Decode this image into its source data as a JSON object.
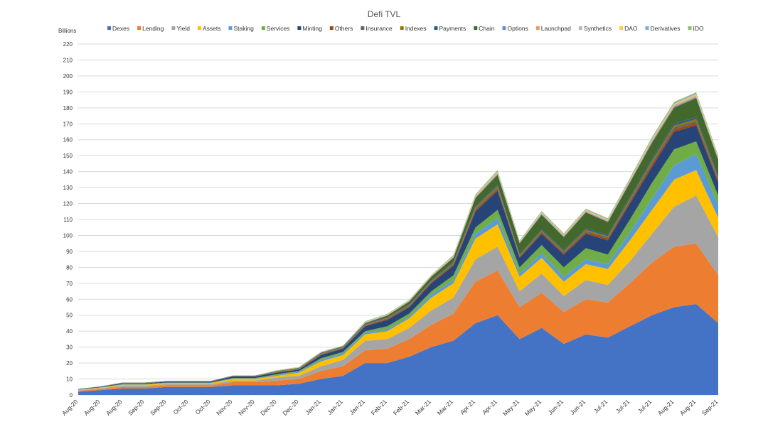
{
  "chart_data": {
    "type": "area",
    "stacked": true,
    "title": "Defi TVL",
    "ylabel": "Billions",
    "ylim": [
      0,
      220
    ],
    "ytick_step": 10,
    "grid": true,
    "legend_position": "top",
    "x": [
      "Aug-20",
      "Aug-20",
      "Aug-20",
      "Sep-20",
      "Sep-20",
      "Oct-20",
      "Oct-20",
      "Nov-20",
      "Nov-20",
      "Dec-20",
      "Dec-20",
      "Jan-21",
      "Jan-21",
      "Jan-21",
      "Feb-21",
      "Feb-21",
      "Mar-21",
      "Mar-21",
      "Apr-21",
      "Apr-21",
      "May-21",
      "May-21",
      "Jun-21",
      "Jun-21",
      "Jul-21",
      "Jul-21",
      "Jul-21",
      "Aug-21",
      "Aug-21",
      "Sep-21"
    ],
    "series": [
      {
        "name": "Dexes",
        "color": "#4472c4",
        "values": [
          2,
          3,
          4,
          4,
          5,
          5,
          5,
          6,
          6,
          6,
          7,
          10,
          12,
          20,
          20,
          24,
          30,
          34,
          45,
          50,
          35,
          42,
          32,
          38,
          36,
          43,
          50,
          55,
          57,
          45
        ]
      },
      {
        "name": "Lending",
        "color": "#ed7d31",
        "values": [
          0.5,
          0.7,
          1,
          1,
          1,
          1,
          1,
          2,
          2,
          3,
          3,
          5,
          6,
          8,
          9,
          11,
          14,
          17,
          26,
          28,
          20,
          22,
          20,
          22,
          22,
          27,
          33,
          38,
          38,
          30
        ]
      },
      {
        "name": "Yield",
        "color": "#a5a5a5",
        "values": [
          0.4,
          0.5,
          0.8,
          0.8,
          0.8,
          0.8,
          0.8,
          1,
          1,
          2,
          2,
          3,
          4,
          6,
          6,
          7,
          9,
          10,
          14,
          15,
          10,
          12,
          10,
          12,
          11,
          14,
          18,
          25,
          30,
          24
        ]
      },
      {
        "name": "Assets",
        "color": "#ffc000",
        "values": [
          0.3,
          0.4,
          0.6,
          0.6,
          0.6,
          0.6,
          0.6,
          1,
          1,
          1,
          2,
          3,
          3,
          4,
          5,
          6,
          8,
          9,
          13,
          14,
          9,
          10,
          9,
          10,
          10,
          13,
          15,
          17,
          16,
          12
        ]
      },
      {
        "name": "Staking",
        "color": "#5b9bd5",
        "values": [
          0.1,
          0.1,
          0.2,
          0.2,
          0.2,
          0.2,
          0.2,
          0.3,
          0.3,
          0.5,
          0.5,
          1,
          1,
          1,
          1,
          1,
          2,
          2,
          3,
          4,
          2,
          3,
          3,
          3,
          3,
          5,
          7,
          9,
          10,
          8
        ]
      },
      {
        "name": "Services",
        "color": "#70ad47",
        "values": [
          0.1,
          0.1,
          0.2,
          0.2,
          0.2,
          0.2,
          0.2,
          0.3,
          0.3,
          0.5,
          0.5,
          1,
          1,
          1,
          2,
          2,
          2,
          3,
          4,
          5,
          4,
          5,
          6,
          7,
          6,
          8,
          10,
          10,
          8,
          6
        ]
      },
      {
        "name": "Minting",
        "color": "#264478",
        "values": [
          0.2,
          0.3,
          0.5,
          0.5,
          0.5,
          0.5,
          0.5,
          1,
          1,
          1,
          1,
          2,
          2,
          3,
          4,
          4,
          5,
          6,
          10,
          12,
          6,
          7,
          8,
          9,
          9,
          10,
          10,
          11,
          10,
          8
        ]
      },
      {
        "name": "Others",
        "color": "#9e480e",
        "values": [
          0.05,
          0.05,
          0.1,
          0.1,
          0.1,
          0.1,
          0.1,
          0.1,
          0.1,
          0.2,
          0.2,
          0.3,
          0.3,
          0.4,
          0.5,
          0.5,
          0.6,
          0.7,
          1,
          1,
          0.6,
          0.8,
          0.8,
          1,
          1,
          1.2,
          1.5,
          1.5,
          1.5,
          1.2
        ]
      },
      {
        "name": "Insurance",
        "color": "#636363",
        "values": [
          0.05,
          0.05,
          0.1,
          0.1,
          0.1,
          0.1,
          0.1,
          0.1,
          0.1,
          0.2,
          0.2,
          0.3,
          0.3,
          0.4,
          0.4,
          0.5,
          0.5,
          0.6,
          0.8,
          1,
          0.5,
          0.7,
          0.7,
          0.8,
          0.8,
          1,
          1.2,
          1.2,
          1.2,
          1
        ]
      },
      {
        "name": "Indexes",
        "color": "#997300",
        "values": [
          0.05,
          0.05,
          0.1,
          0.1,
          0.1,
          0.1,
          0.1,
          0.1,
          0.1,
          0.2,
          0.2,
          0.3,
          0.3,
          0.4,
          0.4,
          0.5,
          0.5,
          0.6,
          0.8,
          1,
          0.5,
          0.7,
          0.7,
          0.8,
          0.8,
          1,
          1.2,
          1.2,
          1.2,
          1
        ]
      },
      {
        "name": "Payments",
        "color": "#255e91",
        "values": [
          0.05,
          0.05,
          0.1,
          0.1,
          0.1,
          0.1,
          0.1,
          0.1,
          0.1,
          0.2,
          0.2,
          0.3,
          0.3,
          0.4,
          0.4,
          0.5,
          0.5,
          0.6,
          0.8,
          1,
          0.5,
          0.7,
          0.7,
          0.8,
          0.8,
          1,
          1.2,
          1.2,
          1.2,
          1
        ]
      },
      {
        "name": "Chain",
        "color": "#43682b",
        "values": [
          0.05,
          0.05,
          0.1,
          0.1,
          0.1,
          0.1,
          0.1,
          0.1,
          0.1,
          0.2,
          0.2,
          0.3,
          0.3,
          0.4,
          1,
          1.5,
          2,
          2.5,
          5,
          6,
          7,
          9,
          8,
          10,
          8,
          9,
          10,
          10,
          12,
          10
        ]
      },
      {
        "name": "Options",
        "color": "#698ed0",
        "values": [
          0,
          0,
          0,
          0,
          0,
          0,
          0,
          0,
          0,
          0.1,
          0.1,
          0.1,
          0.1,
          0.2,
          0.2,
          0.2,
          0.2,
          0.3,
          0.4,
          0.5,
          0.3,
          0.4,
          0.4,
          0.4,
          0.4,
          0.5,
          0.6,
          0.6,
          0.6,
          0.5
        ]
      },
      {
        "name": "Launchpad",
        "color": "#f1975a",
        "values": [
          0,
          0,
          0,
          0,
          0,
          0,
          0,
          0,
          0,
          0.1,
          0.1,
          0.1,
          0.1,
          0.2,
          0.2,
          0.2,
          0.2,
          0.3,
          0.4,
          0.5,
          0.3,
          0.4,
          0.4,
          0.4,
          0.4,
          0.5,
          0.6,
          0.6,
          0.6,
          0.5
        ]
      },
      {
        "name": "Synthetics",
        "color": "#b7b7b7",
        "values": [
          0,
          0,
          0,
          0,
          0,
          0,
          0,
          0,
          0,
          0.1,
          0.1,
          0.1,
          0.1,
          0.2,
          0.2,
          0.2,
          0.2,
          0.3,
          0.4,
          0.5,
          0.3,
          0.4,
          0.4,
          0.4,
          0.4,
          0.5,
          0.6,
          0.6,
          0.6,
          0.5
        ]
      },
      {
        "name": "DAO",
        "color": "#ffcd33",
        "values": [
          0,
          0,
          0,
          0,
          0,
          0,
          0,
          0,
          0,
          0.1,
          0.1,
          0.1,
          0.1,
          0.2,
          0.2,
          0.2,
          0.2,
          0.3,
          0.4,
          0.5,
          0.3,
          0.4,
          0.4,
          0.4,
          0.4,
          0.5,
          0.6,
          0.6,
          0.6,
          0.5
        ]
      },
      {
        "name": "Derivatives",
        "color": "#7cafdd",
        "values": [
          0,
          0,
          0,
          0,
          0,
          0,
          0,
          0,
          0,
          0.1,
          0.1,
          0.1,
          0.1,
          0.2,
          0.2,
          0.2,
          0.2,
          0.3,
          0.4,
          0.5,
          0.3,
          0.4,
          0.4,
          0.4,
          0.4,
          0.5,
          0.6,
          0.6,
          0.6,
          0.5
        ]
      },
      {
        "name": "IDO",
        "color": "#8cc168",
        "values": [
          0,
          0,
          0,
          0,
          0,
          0,
          0,
          0,
          0,
          0.1,
          0.1,
          0.1,
          0.1,
          0.2,
          0.2,
          0.2,
          0.2,
          0.3,
          0.4,
          0.5,
          0.3,
          0.4,
          0.4,
          0.4,
          0.4,
          0.5,
          0.6,
          0.6,
          0.6,
          0.5
        ]
      }
    ]
  }
}
